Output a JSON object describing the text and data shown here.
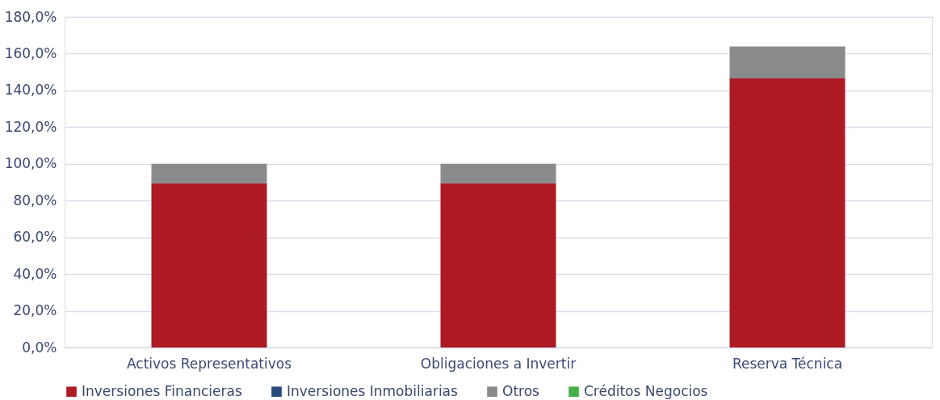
{
  "chart_data": {
    "type": "bar",
    "stacked": true,
    "categories": [
      "Activos Representativos",
      "Obligaciones a Invertir",
      "Reserva Técnica"
    ],
    "series": [
      {
        "name": "Inversiones Financieras",
        "color": "#ad1a24",
        "values": [
          89.4,
          89.4,
          146.6
        ]
      },
      {
        "name": "Inversiones Inmobiliarias",
        "color": "#2a4a7f",
        "values": [
          0,
          0,
          0
        ]
      },
      {
        "name": "Otros",
        "color": "#898a8c",
        "values": [
          10.6,
          10.6,
          17.3
        ]
      },
      {
        "name": "Créditos Negocios",
        "color": "#45b04a",
        "values": [
          0,
          0,
          0
        ]
      }
    ],
    "ylim": [
      0,
      180
    ],
    "yticks": [
      {
        "value": 0,
        "label": "0,0%"
      },
      {
        "value": 20,
        "label": "20,0%"
      },
      {
        "value": 40,
        "label": "40,0%"
      },
      {
        "value": 60,
        "label": "60,0%"
      },
      {
        "value": 80,
        "label": "80,0%"
      },
      {
        "value": 100,
        "label": "100,0%"
      },
      {
        "value": 120,
        "label": "120,0%"
      },
      {
        "value": 140,
        "label": "140,0%"
      },
      {
        "value": 160,
        "label": "160,0%"
      },
      {
        "value": 180,
        "label": "180,0%"
      }
    ],
    "grid": "y",
    "legend": "bottom"
  }
}
